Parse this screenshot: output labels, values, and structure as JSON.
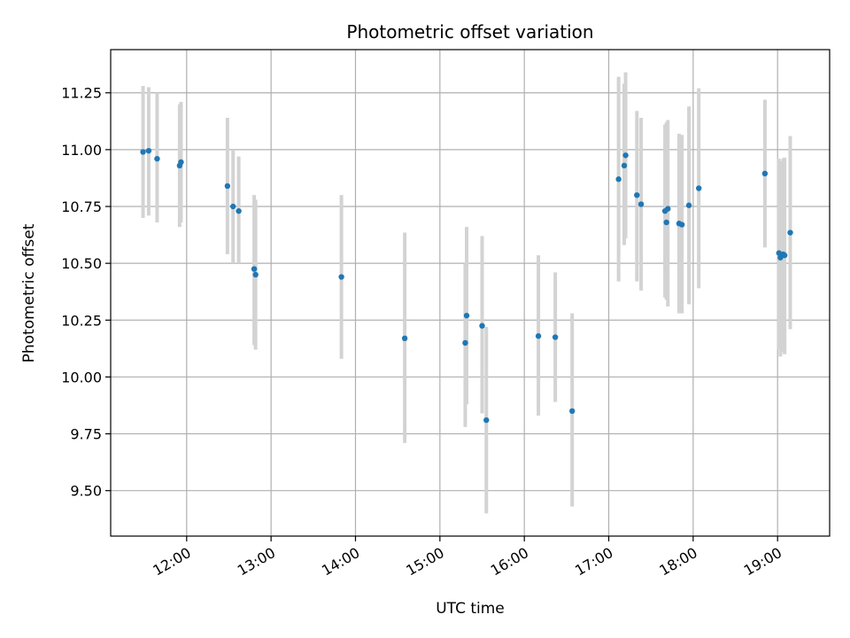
{
  "chart_data": {
    "type": "scatter",
    "title": "Photometric offset variation",
    "xlabel": "UTC time",
    "ylabel": "Photometric offset",
    "x_tick_labels": [
      "12:00",
      "13:00",
      "14:00",
      "15:00",
      "16:00",
      "17:00",
      "18:00",
      "19:00"
    ],
    "y_tick_labels": [
      "9.50",
      "9.75",
      "10.00",
      "10.25",
      "10.50",
      "10.75",
      "11.00",
      "11.25"
    ],
    "y_ticks": [
      9.5,
      9.75,
      10.0,
      10.25,
      10.5,
      10.75,
      11.0,
      11.25
    ],
    "xlim": [
      "11:06",
      "19:37"
    ],
    "ylim": [
      9.3,
      11.44
    ],
    "grid": true,
    "colors": {
      "point": "#1f77b4",
      "errorbar": "#d3d3d3",
      "grid": "#b0b0b0"
    },
    "points": [
      {
        "t": "11:29",
        "y": 10.99,
        "lo": 10.7,
        "hi": 11.28
      },
      {
        "t": "11:33",
        "y": 10.995,
        "lo": 10.71,
        "hi": 11.275
      },
      {
        "t": "11:39",
        "y": 10.96,
        "lo": 10.68,
        "hi": 11.25
      },
      {
        "t": "11:55",
        "y": 10.93,
        "lo": 10.66,
        "hi": 11.2
      },
      {
        "t": "11:56",
        "y": 10.945,
        "lo": 10.68,
        "hi": 11.21
      },
      {
        "t": "12:29",
        "y": 10.84,
        "lo": 10.54,
        "hi": 11.14
      },
      {
        "t": "12:33",
        "y": 10.75,
        "lo": 10.5,
        "hi": 11.0
      },
      {
        "t": "12:37",
        "y": 10.73,
        "lo": 10.5,
        "hi": 10.97
      },
      {
        "t": "12:48",
        "y": 10.475,
        "lo": 10.14,
        "hi": 10.8
      },
      {
        "t": "12:49",
        "y": 10.45,
        "lo": 10.12,
        "hi": 10.78
      },
      {
        "t": "13:50",
        "y": 10.44,
        "lo": 10.08,
        "hi": 10.8
      },
      {
        "t": "14:35",
        "y": 10.17,
        "lo": 9.71,
        "hi": 10.635
      },
      {
        "t": "15:18",
        "y": 10.15,
        "lo": 9.78,
        "hi": 10.5
      },
      {
        "t": "15:19",
        "y": 10.27,
        "lo": 9.88,
        "hi": 10.66
      },
      {
        "t": "15:30",
        "y": 10.225,
        "lo": 9.84,
        "hi": 10.62
      },
      {
        "t": "15:33",
        "y": 9.81,
        "lo": 9.4,
        "hi": 10.22
      },
      {
        "t": "16:10",
        "y": 10.18,
        "lo": 9.83,
        "hi": 10.535
      },
      {
        "t": "16:22",
        "y": 10.175,
        "lo": 9.89,
        "hi": 10.46
      },
      {
        "t": "16:34",
        "y": 9.85,
        "lo": 9.43,
        "hi": 10.28
      },
      {
        "t": "17:07",
        "y": 10.87,
        "lo": 10.42,
        "hi": 11.32
      },
      {
        "t": "17:11",
        "y": 10.93,
        "lo": 10.58,
        "hi": 11.29
      },
      {
        "t": "17:12",
        "y": 10.975,
        "lo": 10.61,
        "hi": 11.34
      },
      {
        "t": "17:20",
        "y": 10.8,
        "lo": 10.42,
        "hi": 11.17
      },
      {
        "t": "17:23",
        "y": 10.76,
        "lo": 10.38,
        "hi": 11.14
      },
      {
        "t": "17:40",
        "y": 10.73,
        "lo": 10.35,
        "hi": 11.11
      },
      {
        "t": "17:41",
        "y": 10.68,
        "lo": 10.34,
        "hi": 11.12
      },
      {
        "t": "17:42",
        "y": 10.74,
        "lo": 10.31,
        "hi": 11.13
      },
      {
        "t": "17:50",
        "y": 10.675,
        "lo": 10.28,
        "hi": 11.07
      },
      {
        "t": "17:52",
        "y": 10.67,
        "lo": 10.28,
        "hi": 11.065
      },
      {
        "t": "17:57",
        "y": 10.755,
        "lo": 10.32,
        "hi": 11.19
      },
      {
        "t": "18:04",
        "y": 10.83,
        "lo": 10.39,
        "hi": 11.27
      },
      {
        "t": "18:51",
        "y": 10.895,
        "lo": 10.57,
        "hi": 11.22
      },
      {
        "t": "19:01",
        "y": 10.545,
        "lo": 10.12,
        "hi": 10.96
      },
      {
        "t": "19:02",
        "y": 10.525,
        "lo": 10.09,
        "hi": 10.95
      },
      {
        "t": "19:04",
        "y": 10.54,
        "lo": 10.11,
        "hi": 10.96
      },
      {
        "t": "19:05",
        "y": 10.535,
        "lo": 10.1,
        "hi": 10.965
      },
      {
        "t": "19:09",
        "y": 10.635,
        "lo": 10.21,
        "hi": 11.06
      }
    ]
  }
}
